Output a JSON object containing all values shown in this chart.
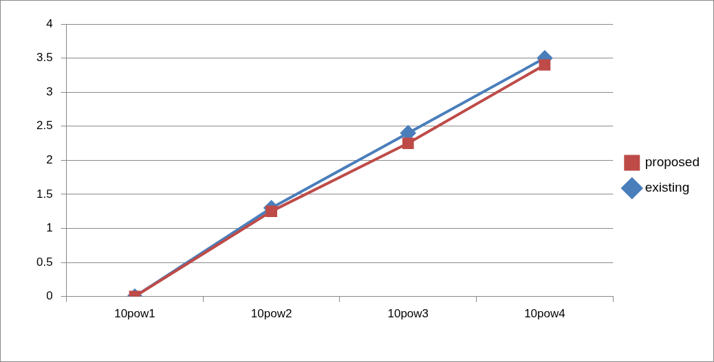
{
  "chart_data": {
    "type": "line",
    "categories": [
      "10pow1",
      "10pow2",
      "10pow3",
      "10pow4"
    ],
    "series": [
      {
        "name": "existing",
        "color": "#4a7ebb",
        "values": [
          0,
          1.3,
          2.4,
          3.5
        ],
        "marker": "diamond"
      },
      {
        "name": "proposed",
        "color": "#be4b48",
        "values": [
          0,
          1.25,
          2.25,
          3.4
        ],
        "marker": "square"
      }
    ],
    "ylim": [
      0,
      4
    ],
    "yticks": [
      0,
      0.5,
      1,
      1.5,
      2,
      2.5,
      3,
      3.5,
      4
    ],
    "grid": "y",
    "legend": "right",
    "line_style": "solid"
  }
}
